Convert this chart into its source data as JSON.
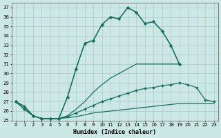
{
  "xlabel": "Humidex (Indice chaleur)",
  "bg_color": "#cce8e4",
  "line_color": "#1a6e60",
  "grid_color": "#aacccc",
  "xlim": [
    -0.5,
    23.5
  ],
  "ylim": [
    25,
    37.5
  ],
  "xticks": [
    0,
    1,
    2,
    3,
    4,
    5,
    6,
    7,
    8,
    9,
    10,
    11,
    12,
    13,
    14,
    15,
    16,
    17,
    18,
    19,
    20,
    21,
    22,
    23
  ],
  "yticks": [
    25,
    26,
    27,
    28,
    29,
    30,
    31,
    32,
    33,
    34,
    35,
    36,
    37
  ],
  "lines": [
    {
      "x": [
        0,
        1,
        2,
        3,
        4,
        5,
        6,
        7,
        8,
        9,
        10,
        11,
        12,
        13,
        14,
        15,
        16,
        17,
        18,
        19
      ],
      "y": [
        27,
        26.2,
        25.5,
        25.2,
        25.2,
        25.2,
        27.5,
        30.5,
        33.2,
        33.5,
        35.2,
        36.0,
        35.8,
        37.0,
        36.5,
        35.3,
        35.5,
        34.5,
        33.0,
        31.0
      ],
      "marker": "D",
      "markersize": 2.5,
      "linewidth": 1.2,
      "solid": true
    },
    {
      "x": [
        0,
        1,
        2,
        3,
        4,
        5,
        6,
        7,
        8,
        9,
        10,
        11,
        12,
        13,
        14,
        15,
        16,
        17,
        18,
        19
      ],
      "y": [
        27,
        26.5,
        25.5,
        25.2,
        25.2,
        25.2,
        25.5,
        26.2,
        27.0,
        28.0,
        28.8,
        29.5,
        30.0,
        30.5,
        31.0,
        31.0,
        31.0,
        31.0,
        31.0,
        31.0
      ],
      "marker": null,
      "markersize": 0,
      "linewidth": 0.9,
      "solid": true
    },
    {
      "x": [
        0,
        1,
        2,
        3,
        4,
        5,
        6,
        7,
        8,
        9,
        10,
        11,
        12,
        13,
        14,
        15,
        16,
        17,
        18,
        19,
        20,
        21,
        22,
        23
      ],
      "y": [
        27,
        26.5,
        25.5,
        25.2,
        25.2,
        25.2,
        25.4,
        25.8,
        26.2,
        26.6,
        27.0,
        27.3,
        27.6,
        27.9,
        28.2,
        28.4,
        28.5,
        28.7,
        28.8,
        29.0,
        28.8,
        28.5,
        27.2,
        27.0
      ],
      "marker": "D",
      "markersize": 2.0,
      "linewidth": 0.9,
      "solid": true
    },
    {
      "x": [
        0,
        1,
        2,
        3,
        4,
        5,
        6,
        7,
        8,
        9,
        10,
        11,
        12,
        13,
        14,
        15,
        16,
        17,
        18,
        19,
        20,
        21,
        22,
        23
      ],
      "y": [
        27,
        26.5,
        25.5,
        25.2,
        25.2,
        25.2,
        25.3,
        25.4,
        25.6,
        25.8,
        25.9,
        26.0,
        26.1,
        26.2,
        26.3,
        26.4,
        26.5,
        26.6,
        26.7,
        26.8,
        26.8,
        26.8,
        26.8,
        26.8
      ],
      "marker": null,
      "markersize": 0,
      "linewidth": 0.9,
      "solid": true
    }
  ]
}
